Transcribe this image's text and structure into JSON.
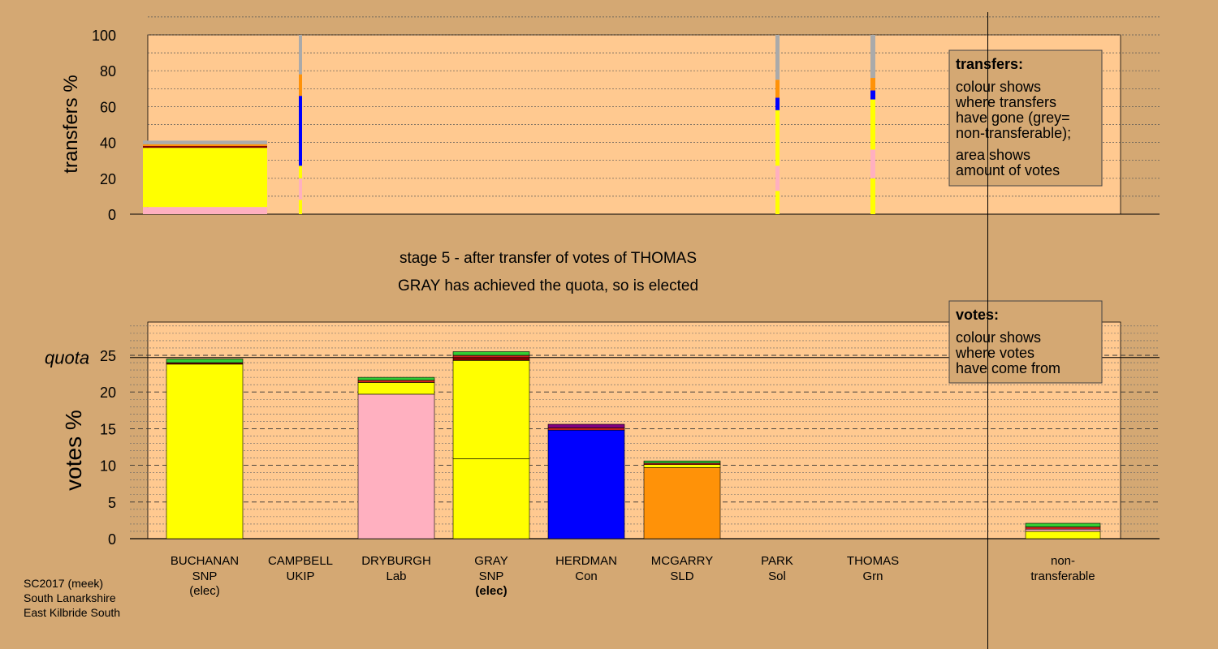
{
  "colors": {
    "page_bg": "#d4a873",
    "plot_bg": "#ffc990",
    "grey": "#aaaaaa",
    "orange": "#ff9208",
    "blue": "#0000ff",
    "yellow": "#ffff00",
    "pink": "#ffb0c0",
    "green": "#33cc33",
    "red": "#d02020",
    "darkred": "#800000",
    "purple": "#800080"
  },
  "top": {
    "ylabel": "transfers %",
    "yticks": [
      "0",
      "20",
      "40",
      "60",
      "80",
      "100"
    ],
    "legend": {
      "title": "transfers:",
      "lines1": [
        "colour shows",
        "where transfers",
        "have gone (grey=",
        "non-transferable);"
      ],
      "lines2": [
        "area shows",
        "amount of votes"
      ]
    }
  },
  "stage": {
    "line1": "stage 5 - after transfer of votes of THOMAS",
    "line2": "GRAY has achieved the quota, so is elected"
  },
  "bottom": {
    "ylabel": "votes %",
    "quota_label": "quota",
    "yticks": [
      "0",
      "5",
      "10",
      "15",
      "20",
      "25"
    ],
    "legend": {
      "title": "votes:",
      "lines": [
        "colour shows",
        "where votes",
        "have come from"
      ]
    }
  },
  "candidates": [
    {
      "name": "BUCHANAN",
      "party": "SNP",
      "status": "(elec)",
      "bold": false
    },
    {
      "name": "CAMPBELL",
      "party": "UKIP",
      "status": "",
      "bold": false
    },
    {
      "name": "DRYBURGH",
      "party": "Lab",
      "status": "",
      "bold": false
    },
    {
      "name": "GRAY",
      "party": "SNP",
      "status": "(elec)",
      "bold": true
    },
    {
      "name": "HERDMAN",
      "party": "Con",
      "status": "",
      "bold": false
    },
    {
      "name": "MCGARRY",
      "party": "SLD",
      "status": "",
      "bold": false
    },
    {
      "name": "PARK",
      "party": "Sol",
      "status": "",
      "bold": false
    },
    {
      "name": "THOMAS",
      "party": "Grn",
      "status": "",
      "bold": false
    }
  ],
  "nontransferable": {
    "line1": "non-",
    "line2": "transferable"
  },
  "footer": [
    "SC2017 (meek)",
    "South Lanarkshire",
    "East Kilbride South"
  ],
  "chart_data": [
    {
      "type": "bar",
      "title": "",
      "ylabel": "transfers %",
      "ylim": [
        0,
        100
      ],
      "note": "stacked transfer shares by destination colour",
      "bars": [
        {
          "label": "BUCHANAN",
          "segments": [
            {
              "color": "pink",
              "from": 0,
              "to": 4
            },
            {
              "color": "yellow",
              "from": 4,
              "to": 37
            },
            {
              "color": "darkred",
              "from": 37,
              "to": 38
            },
            {
              "color": "orange",
              "from": 38,
              "to": 39
            },
            {
              "color": "grey",
              "from": 39,
              "to": 41
            }
          ]
        },
        {
          "label": "CAMPBELL",
          "segments": [
            {
              "color": "yellow",
              "from": 0,
              "to": 8
            },
            {
              "color": "pink",
              "from": 8,
              "to": 20
            },
            {
              "color": "yellow",
              "from": 20,
              "to": 27
            },
            {
              "color": "blue",
              "from": 27,
              "to": 66
            },
            {
              "color": "orange",
              "from": 66,
              "to": 78
            },
            {
              "color": "grey",
              "from": 78,
              "to": 100
            }
          ]
        },
        {
          "label": "PARK",
          "segments": [
            {
              "color": "yellow",
              "from": 0,
              "to": 13
            },
            {
              "color": "pink",
              "from": 13,
              "to": 27
            },
            {
              "color": "yellow",
              "from": 27,
              "to": 58
            },
            {
              "color": "blue",
              "from": 58,
              "to": 65
            },
            {
              "color": "orange",
              "from": 65,
              "to": 75
            },
            {
              "color": "grey",
              "from": 75,
              "to": 100
            }
          ]
        },
        {
          "label": "THOMAS",
          "segments": [
            {
              "color": "yellow",
              "from": 0,
              "to": 20
            },
            {
              "color": "pink",
              "from": 20,
              "to": 36
            },
            {
              "color": "yellow",
              "from": 36,
              "to": 64
            },
            {
              "color": "blue",
              "from": 64,
              "to": 69
            },
            {
              "color": "orange",
              "from": 69,
              "to": 76
            },
            {
              "color": "grey",
              "from": 76,
              "to": 100
            }
          ]
        }
      ]
    },
    {
      "type": "bar",
      "title": "",
      "ylabel": "votes %",
      "ylim": [
        0,
        30
      ],
      "quota": 24.7,
      "note": "stacked votes by origin colour",
      "bars": [
        {
          "label": "BUCHANAN",
          "segments": [
            {
              "color": "yellow",
              "from": 0,
              "to": 23.8
            },
            {
              "color": "darkred",
              "from": 23.8,
              "to": 24.0
            },
            {
              "color": "green",
              "from": 24.0,
              "to": 24.5
            }
          ]
        },
        {
          "label": "CAMPBELL",
          "segments": []
        },
        {
          "label": "DRYBURGH",
          "segments": [
            {
              "color": "pink",
              "from": 0,
              "to": 19.7
            },
            {
              "color": "yellow",
              "from": 19.7,
              "to": 21.3
            },
            {
              "color": "red",
              "from": 21.3,
              "to": 21.6
            },
            {
              "color": "green",
              "from": 21.6,
              "to": 22.0
            }
          ]
        },
        {
          "label": "GRAY",
          "segments": [
            {
              "color": "yellow",
              "from": 0,
              "to": 10.9
            },
            {
              "color": "yellow",
              "from": 10.9,
              "to": 24.3
            },
            {
              "color": "darkred",
              "from": 24.3,
              "to": 24.7
            },
            {
              "color": "red",
              "from": 24.7,
              "to": 25.0
            },
            {
              "color": "green",
              "from": 25.0,
              "to": 25.5
            }
          ]
        },
        {
          "label": "HERDMAN",
          "segments": [
            {
              "color": "blue",
              "from": 0,
              "to": 14.8
            },
            {
              "color": "red",
              "from": 14.8,
              "to": 15.1
            },
            {
              "color": "purple",
              "from": 15.1,
              "to": 15.6
            }
          ]
        },
        {
          "label": "MCGARRY",
          "segments": [
            {
              "color": "orange",
              "from": 0,
              "to": 9.7
            },
            {
              "color": "yellow",
              "from": 9.7,
              "to": 10.1
            },
            {
              "color": "red",
              "from": 10.1,
              "to": 10.3
            },
            {
              "color": "green",
              "from": 10.3,
              "to": 10.6
            }
          ]
        },
        {
          "label": "PARK",
          "segments": []
        },
        {
          "label": "THOMAS",
          "segments": []
        },
        {
          "label": "non-transferable",
          "segments": [
            {
              "color": "yellow",
              "from": 0,
              "to": 1.0
            },
            {
              "color": "pink",
              "from": 1.0,
              "to": 1.3
            },
            {
              "color": "red",
              "from": 1.3,
              "to": 1.6
            },
            {
              "color": "green",
              "from": 1.6,
              "to": 2.1
            }
          ]
        }
      ]
    }
  ]
}
